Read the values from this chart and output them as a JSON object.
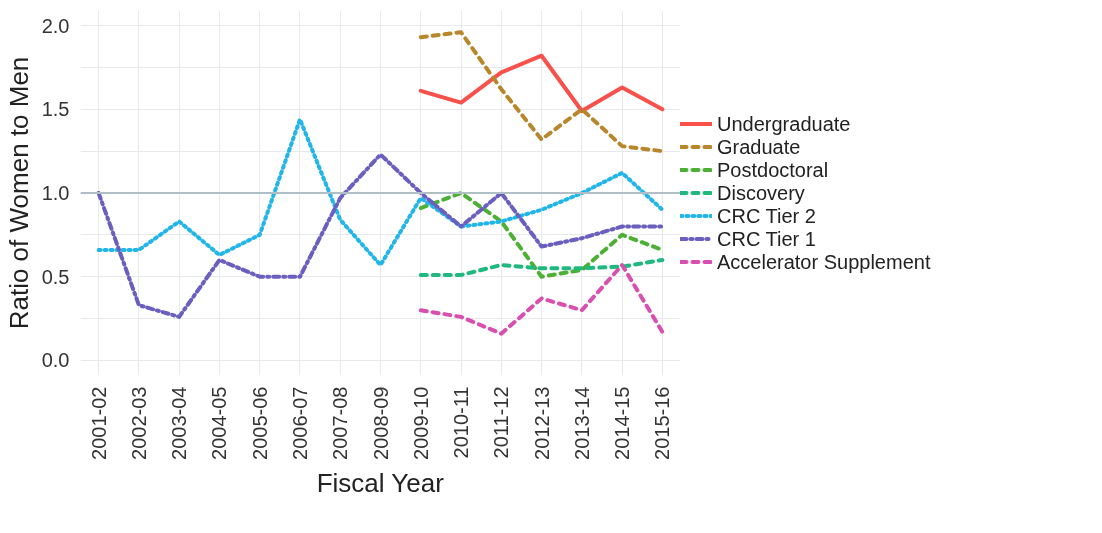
{
  "chart_data": {
    "type": "line",
    "xlabel": "Fiscal Year",
    "ylabel": "Ratio of Women to Men",
    "categories": [
      "2001-02",
      "2002-03",
      "2003-04",
      "2004-05",
      "2005-06",
      "2006-07",
      "2007-08",
      "2008-09",
      "2009-10",
      "2010-11",
      "2011-12",
      "2012-13",
      "2013-14",
      "2014-15",
      "2015-16"
    ],
    "ylim": [
      -0.09,
      2.09
    ],
    "yticks": [
      {
        "value": 0,
        "label": "0.0"
      },
      {
        "value": 0.25,
        "label": null
      },
      0.5,
      {
        "value": 0.75,
        "label": null
      },
      {
        "value": 1,
        "label": "1.0"
      },
      {
        "value": 1.25,
        "label": null
      },
      1.5,
      {
        "value": 1.75,
        "label": null
      },
      {
        "value": 2,
        "label": "2.0"
      }
    ],
    "grid": true,
    "legend": "right",
    "marker": "none",
    "ref_lines": [
      {
        "axis": "y",
        "value": 1.0,
        "label": null,
        "color": "#b0bec5"
      }
    ],
    "series": [
      {
        "name": "Undergraduate",
        "color": "#f8504a",
        "line_style": "solid",
        "values": [
          null,
          null,
          null,
          null,
          null,
          null,
          null,
          null,
          1.61,
          1.54,
          1.72,
          1.82,
          1.49,
          1.63,
          1.5
        ]
      },
      {
        "name": "Graduate",
        "color": "#b8862b",
        "line_style": "dashed",
        "values": [
          null,
          null,
          null,
          null,
          null,
          null,
          null,
          null,
          1.93,
          1.96,
          1.62,
          1.32,
          1.5,
          1.28,
          1.25
        ]
      },
      {
        "name": "Postdoctoral",
        "color": "#4cb034",
        "line_style": "dashed",
        "values": [
          null,
          null,
          null,
          null,
          null,
          null,
          null,
          null,
          0.91,
          1.0,
          0.83,
          0.5,
          0.54,
          0.75,
          0.66
        ]
      },
      {
        "name": "Discovery",
        "color": "#1fb87f",
        "line_style": "dashed",
        "values": [
          null,
          null,
          null,
          null,
          null,
          null,
          null,
          null,
          0.51,
          0.51,
          0.57,
          0.55,
          0.55,
          0.56,
          0.6
        ]
      },
      {
        "name": "CRC Tier 2",
        "color": "#22b5e8",
        "line_style": "dotted",
        "values": [
          0.66,
          0.66,
          0.83,
          0.63,
          0.75,
          1.44,
          0.84,
          0.57,
          0.97,
          0.8,
          0.83,
          0.9,
          1.0,
          1.12,
          0.9
        ]
      },
      {
        "name": "CRC Tier 1",
        "color": "#6a5fbf",
        "line_style": "dashdot",
        "values": [
          1.0,
          0.33,
          0.26,
          0.6,
          0.5,
          0.5,
          0.97,
          1.23,
          1.0,
          0.8,
          1.0,
          0.68,
          0.73,
          0.8,
          0.8
        ]
      },
      {
        "name": "Accelerator Supplement",
        "color": "#d84fb0",
        "line_style": "dashed",
        "values": [
          null,
          null,
          null,
          null,
          null,
          null,
          null,
          null,
          0.3,
          0.26,
          0.16,
          0.37,
          0.3,
          0.57,
          0.17
        ]
      }
    ]
  }
}
